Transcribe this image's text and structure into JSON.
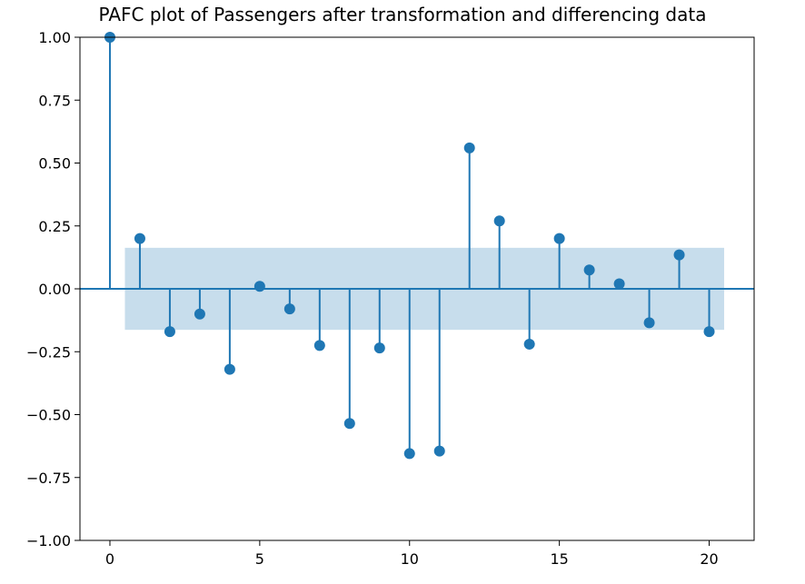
{
  "chart_data": {
    "type": "stem",
    "title": "PAFC plot of Passengers after transformation and differencing data",
    "xlabel": "",
    "ylabel": "",
    "xlim": [
      -1,
      21.5
    ],
    "ylim": [
      -1.0,
      1.0
    ],
    "xticks": [
      0,
      5,
      10,
      15,
      20
    ],
    "xtick_labels": [
      "0",
      "5",
      "10",
      "15",
      "20"
    ],
    "yticks": [
      1.0,
      0.75,
      0.5,
      0.25,
      0.0,
      -0.25,
      -0.5,
      -0.75,
      -1.0
    ],
    "ytick_labels": [
      "1.00",
      "0.75",
      "0.50",
      "0.25",
      "0.00",
      "−0.25",
      "−0.50",
      "−0.75",
      "−1.00"
    ],
    "confidence_band": {
      "x_range": [
        0.5,
        20.5
      ],
      "lower": -0.163,
      "upper": 0.163
    },
    "lags": [
      0,
      1,
      2,
      3,
      4,
      5,
      6,
      7,
      8,
      9,
      10,
      11,
      12,
      13,
      14,
      15,
      16,
      17,
      18,
      19,
      20
    ],
    "values": [
      1.0,
      0.2,
      -0.17,
      -0.1,
      -0.32,
      0.01,
      -0.08,
      -0.225,
      -0.535,
      -0.235,
      -0.655,
      -0.645,
      0.56,
      0.27,
      -0.22,
      0.2,
      0.075,
      0.02,
      -0.135,
      0.135,
      -0.17
    ],
    "grid": false,
    "colors": {
      "stem": "#1f77b4",
      "band": "#1f77b4"
    }
  }
}
